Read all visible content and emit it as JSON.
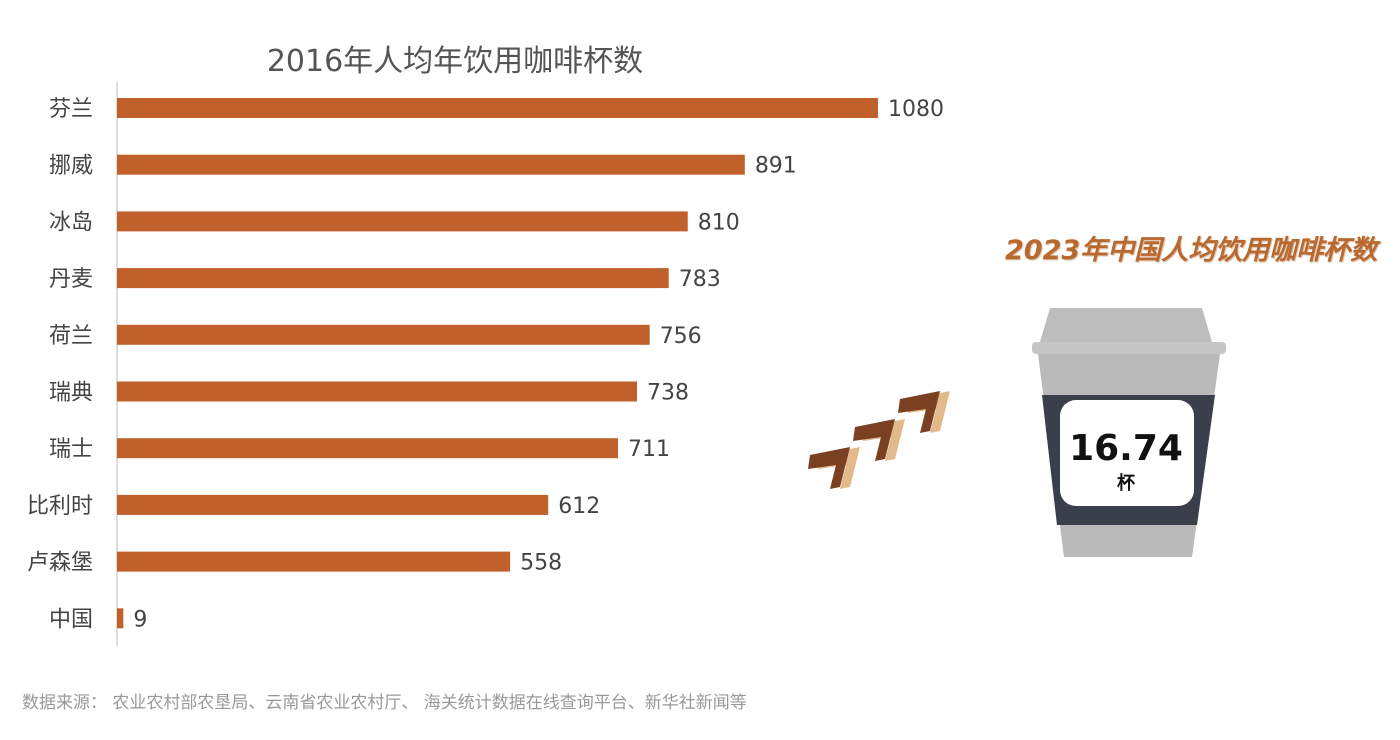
{
  "chart_data": {
    "type": "bar",
    "orientation": "horizontal",
    "title": "2016年人均年饮用咖啡杯数",
    "categories": [
      "芬兰",
      "挪威",
      "冰岛",
      "丹麦",
      "荷兰",
      "瑞典",
      "瑞士",
      "比利时",
      "卢森堡",
      "中国"
    ],
    "values": [
      1080,
      891,
      810,
      783,
      756,
      738,
      711,
      612,
      558,
      9
    ],
    "xlim": [
      0,
      1080
    ],
    "grid": false,
    "bar_color": "#c0612b",
    "data_labels": true
  },
  "side_panel": {
    "title": "2023年中国人均饮用咖啡杯数",
    "value": "16.74",
    "unit": "杯",
    "icon": "coffee-cup-icon",
    "arrow_icon": "chevron-arrows-icon"
  },
  "source": "数据来源： 农业农村部农垦局、云南省农业农村厅、 海关统计数据在线查询平台、新华社新闻等"
}
